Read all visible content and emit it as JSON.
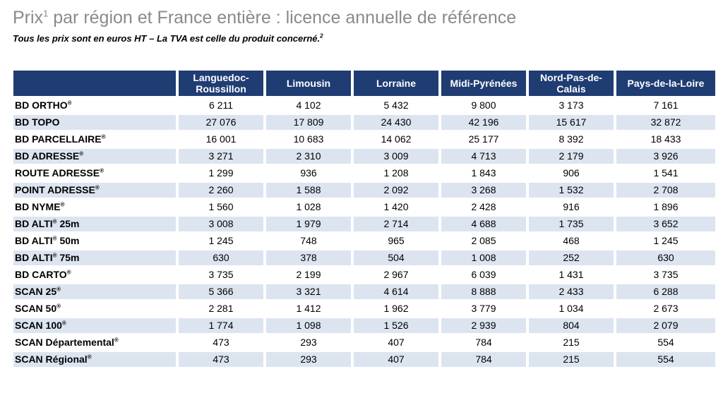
{
  "header": {
    "title_main": "Prix",
    "title_sup": "1",
    "title_rest": " par région et France entière : licence annuelle de référence",
    "subtitle_main": "Tous les prix sont en euros HT – La TVA est celle du produit concerné.",
    "subtitle_sup": "2"
  },
  "table": {
    "columns": [
      "Languedoc-Roussillon",
      "Limousin",
      "Lorraine",
      "Midi-Pyrénées",
      "Nord-Pas-de-Calais",
      "Pays-de-la-Loire"
    ],
    "rows": [
      {
        "label": "BD ORTHO",
        "mark": "®",
        "values": [
          "6 211",
          "4 102",
          "5 432",
          "9 800",
          "3 173",
          "7 161"
        ]
      },
      {
        "label": "BD  TOPO",
        "mark": "",
        "values": [
          "27 076",
          "17 809",
          "24 430",
          "42 196",
          "15 617",
          "32 872"
        ]
      },
      {
        "label": "BD PARCELLAIRE",
        "mark": "®",
        "values": [
          "16 001",
          "10 683",
          "14 062",
          "25 177",
          "8 392",
          "18 433"
        ]
      },
      {
        "label": "BD ADRESSE",
        "mark": "®",
        "values": [
          "3 271",
          "2 310",
          "3 009",
          "4 713",
          "2 179",
          "3 926"
        ]
      },
      {
        "label": "ROUTE ADRESSE",
        "mark": "®",
        "values": [
          "1 299",
          "936",
          "1 208",
          "1 843",
          "906",
          "1 541"
        ]
      },
      {
        "label": "POINT ADRESSE",
        "mark": "®",
        "values": [
          "2 260",
          "1 588",
          "2 092",
          "3 268",
          "1 532",
          "2 708"
        ]
      },
      {
        "label": "BD NYME",
        "mark": "®",
        "values": [
          "1 560",
          "1 028",
          "1 420",
          "2 428",
          "916",
          "1 896"
        ]
      },
      {
        "label": "BD ALTI",
        "mark": "®",
        "suffix": " 25m",
        "values": [
          "3 008",
          "1 979",
          "2 714",
          "4 688",
          "1 735",
          "3 652"
        ]
      },
      {
        "label": "BD ALTI",
        "mark": "®",
        "suffix": " 50m",
        "values": [
          "1 245",
          "748",
          "965",
          "2 085",
          "468",
          "1 245"
        ]
      },
      {
        "label": "BD ALTI",
        "mark": "®",
        "suffix": " 75m",
        "values": [
          "630",
          "378",
          "504",
          "1 008",
          "252",
          "630"
        ]
      },
      {
        "label": "BD CARTO",
        "mark": "®",
        "values": [
          "3 735",
          "2 199",
          "2 967",
          "6 039",
          "1 431",
          "3 735"
        ]
      },
      {
        "label": "SCAN 25",
        "mark": "®",
        "values": [
          "5 366",
          "3 321",
          "4 614",
          "8 888",
          "2 433",
          "6 288"
        ]
      },
      {
        "label": "SCAN 50",
        "mark": "®",
        "values": [
          "2 281",
          "1 412",
          "1 962",
          "3 779",
          "1 034",
          "2 673"
        ]
      },
      {
        "label": "SCAN 100",
        "mark": "®",
        "values": [
          "1 774",
          "1 098",
          "1 526",
          "2 939",
          "804",
          "2 079"
        ]
      },
      {
        "label": "SCAN Départemental",
        "mark": "®",
        "values": [
          "473",
          "293",
          "407",
          "784",
          "215",
          "554"
        ]
      },
      {
        "label": "SCAN Régional",
        "mark": "®",
        "values": [
          "473",
          "293",
          "407",
          "784",
          "215",
          "554"
        ]
      }
    ]
  },
  "colors": {
    "header_bg": "#1f3c73",
    "header_text": "#ffffff",
    "row_shade": "#dce4f0",
    "title_gray": "#8a8a8a"
  }
}
